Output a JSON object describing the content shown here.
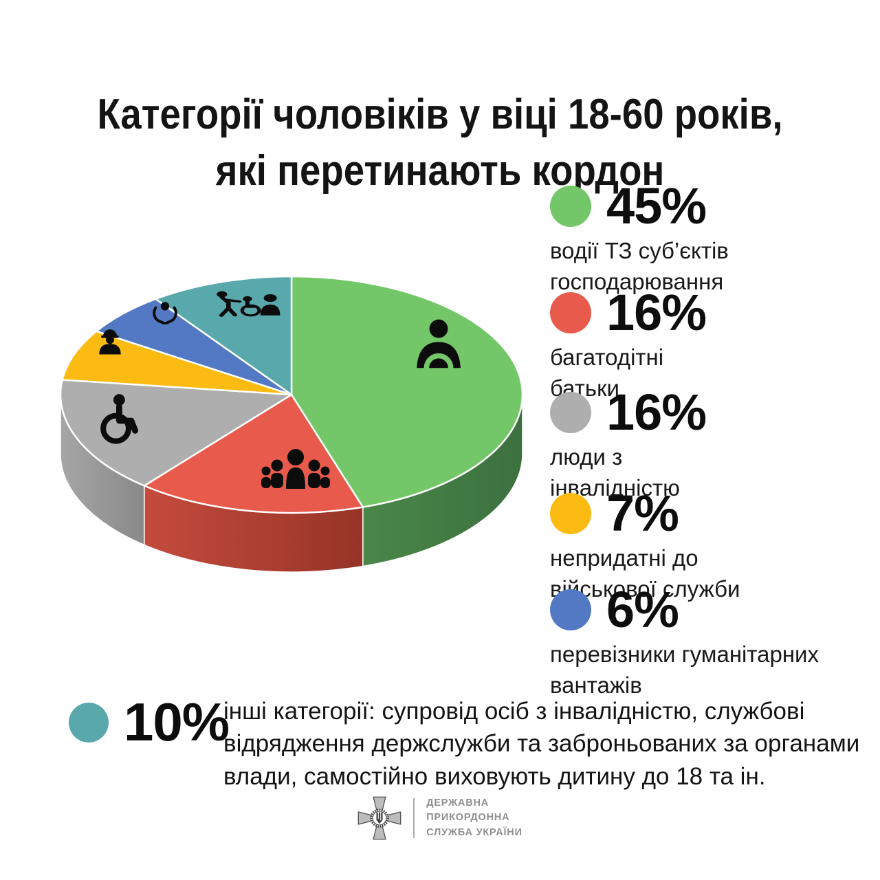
{
  "title": "Категорії чоловіків у віці 18-60 років,\nякі перетинають кордон",
  "chart_data": {
    "type": "pie",
    "style": "3d",
    "direction": "clockwise",
    "start_angle_deg": 0,
    "legend_position": "right",
    "title": "Категорії чоловіків у віці 18-60 років, які перетинають кордон",
    "slices": [
      {
        "pct_label": "45%",
        "value": 45,
        "label": "водії ТЗ суб’єктів\nгосподарювання",
        "color": "#74c768",
        "side_color": "#4a8748",
        "side_color2": "#3c7040",
        "icon": "driver-icon"
      },
      {
        "pct_label": "16%",
        "value": 16,
        "label": "багатодітні\nбатьки",
        "color": "#e85b4c",
        "side_color": "#c44b3d",
        "side_color2": "#963428",
        "icon": "family-icon"
      },
      {
        "pct_label": "16%",
        "value": 16,
        "label": "люди з\nінвалідністю",
        "color": "#aeaeae",
        "side_color": "#a6a6a6",
        "side_color2": "#898989",
        "icon": "wheelchair-icon"
      },
      {
        "pct_label": "7%",
        "value": 7,
        "label": "непридатні до\nвійськової служби",
        "color": "#fbbb13",
        "side_color": "#c2910d",
        "side_color2": "#c2910d",
        "icon": "worker-icon"
      },
      {
        "pct_label": "6%",
        "value": 6,
        "label": "перевізники гуманітарних\nвантажів",
        "color": "#5379c4",
        "side_color": "#3e5c99",
        "side_color2": "#3e5c99",
        "icon": "caring-hands-icon"
      },
      {
        "pct_label": "10%",
        "value": 10,
        "label": "інші категорії: супровід осіб з інвалідністю, службові\nвідрядження держслужби та заброньованих за органами\nвлади, самостійно виховують дитину до 18 та ін.",
        "color": "#58a8ac",
        "side_color": "#417e82",
        "side_color2": "#417e82",
        "icon": "escort-icon"
      }
    ]
  },
  "logo": {
    "lines": "ДЕРЖАВНА\nПРИКОРДОННА\nСЛУЖБА УКРАЇНИ"
  }
}
